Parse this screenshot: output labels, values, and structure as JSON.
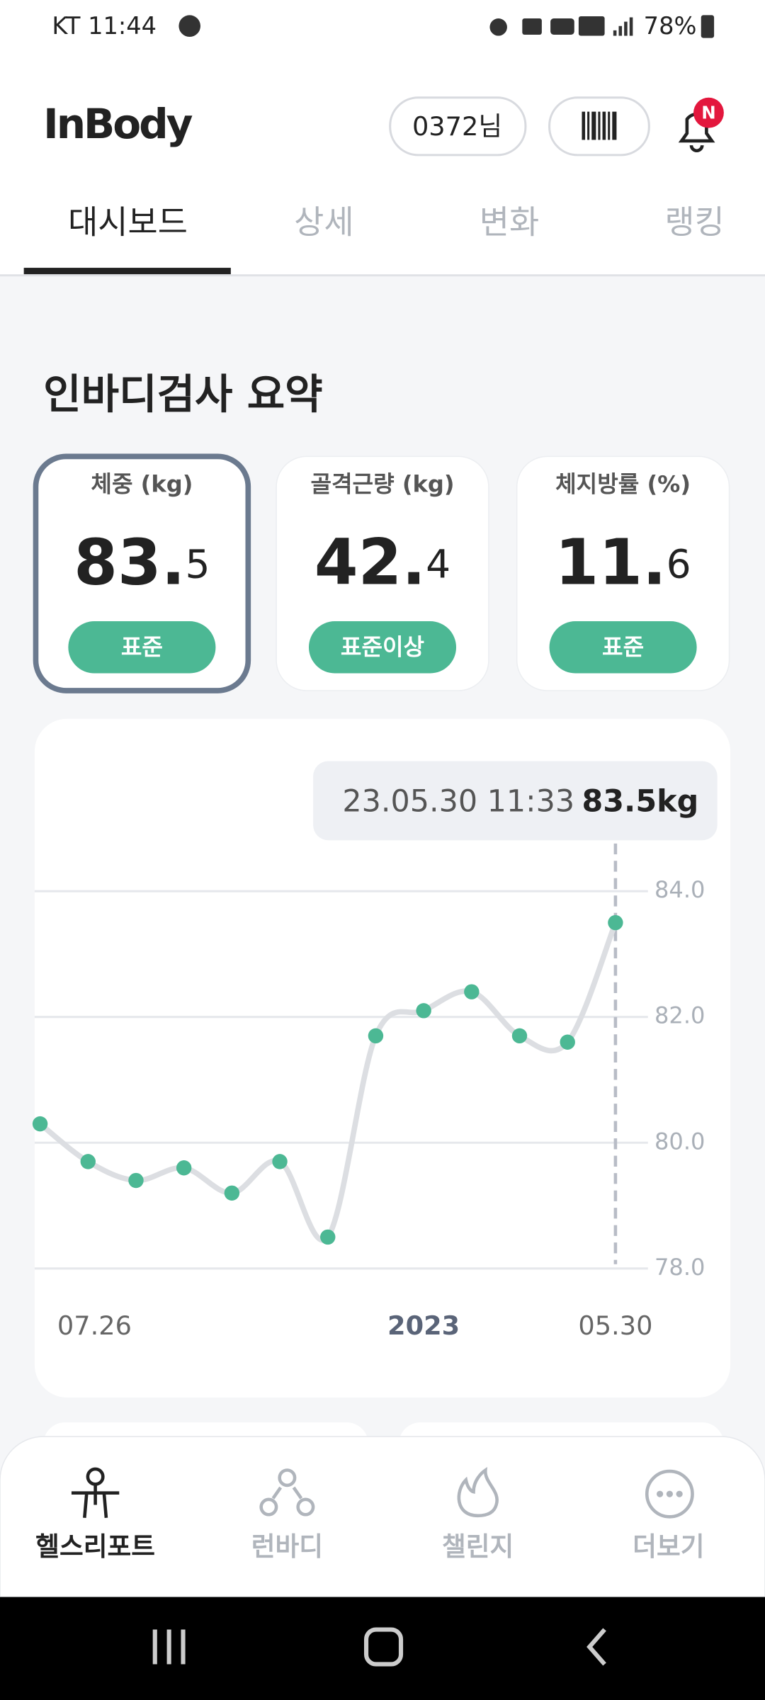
{
  "status": {
    "carrier_time": "KT 11:44",
    "battery": "78%"
  },
  "header": {
    "logo": "InBody",
    "user": "0372님",
    "badge": "N"
  },
  "tabs": [
    "대시보드",
    "상세",
    "변화",
    "랭킹"
  ],
  "section_title": "인바디검사 요약",
  "cards": [
    {
      "label": "체중 (kg)",
      "whole": "83.",
      "fraction": "5",
      "status": "표준"
    },
    {
      "label": "골격근량 (kg)",
      "whole": "42.",
      "fraction": "4",
      "status": "표준이상"
    },
    {
      "label": "체지방률 (%)",
      "whole": "11.",
      "fraction": "6",
      "status": "표준"
    }
  ],
  "chart": {
    "type": "line",
    "tooltip": {
      "date": "23.05.30 11:33",
      "value": "83.5kg"
    },
    "categories": [
      null,
      "07.26",
      null,
      null,
      null,
      null,
      null,
      null,
      "2023",
      null,
      null,
      null,
      "05.30"
    ],
    "values": [
      80.3,
      79.7,
      79.4,
      79.6,
      79.2,
      79.7,
      78.5,
      81.7,
      82.1,
      82.4,
      81.7,
      81.6,
      83.5
    ],
    "ylim": [
      78,
      84
    ],
    "yticks": [
      {
        "value": 84,
        "label": "84.0"
      },
      {
        "value": 82,
        "label": "82.0"
      },
      {
        "value": 80,
        "label": "80.0"
      },
      {
        "value": 78,
        "label": "78.0"
      }
    ],
    "line_color": "#dcdee2",
    "point_color": "#4cb894",
    "grid": true
  },
  "nav": [
    "헬스리포트",
    "런바디",
    "챌린지",
    "더보기"
  ]
}
